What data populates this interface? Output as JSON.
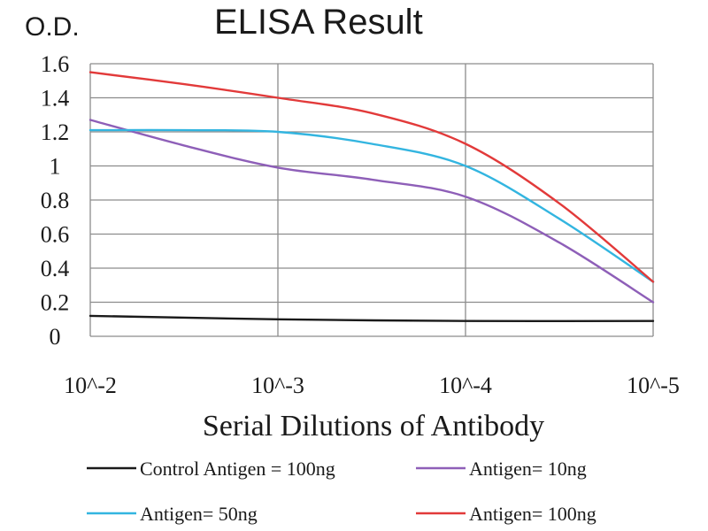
{
  "chart_data": {
    "type": "line",
    "title": "ELISA Result",
    "ylabel": "O.D.",
    "xlabel": "Serial Dilutions of Antibody",
    "x_categories": [
      "10^-2",
      "10^-3",
      "10^-4",
      "10^-5"
    ],
    "x": [
      0,
      1,
      2,
      3
    ],
    "ylim": [
      0,
      1.6
    ],
    "yticks": [
      "0",
      "0.2",
      "0.4",
      "0.6",
      "0.8",
      "1",
      "1.2",
      "1.4",
      "1.6"
    ],
    "grid": true,
    "legend_position": "bottom",
    "series": [
      {
        "name": "Control Antigen = 100ng",
        "color": "#1a1a1a",
        "x": [
          0,
          1,
          2,
          3
        ],
        "values": [
          0.12,
          0.1,
          0.09,
          0.09
        ]
      },
      {
        "name": "Antigen= 10ng",
        "color": "#8e5fb8",
        "x": [
          0,
          0.5,
          1,
          1.5,
          2,
          2.5,
          3
        ],
        "values": [
          1.27,
          1.12,
          0.99,
          0.92,
          0.82,
          0.55,
          0.2
        ]
      },
      {
        "name": "Antigen= 50ng",
        "color": "#33b5e0",
        "x": [
          0,
          0.5,
          1,
          1.5,
          2,
          2.5,
          3
        ],
        "values": [
          1.21,
          1.21,
          1.2,
          1.13,
          1.0,
          0.69,
          0.32
        ]
      },
      {
        "name": "Antigen= 100ng",
        "color": "#e23a3a",
        "x": [
          0,
          0.5,
          1,
          1.5,
          2,
          2.5,
          3
        ],
        "values": [
          1.55,
          1.48,
          1.4,
          1.31,
          1.13,
          0.78,
          0.32
        ]
      }
    ]
  }
}
